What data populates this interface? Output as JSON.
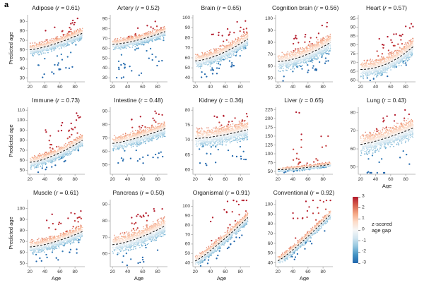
{
  "figure": {
    "label": "a"
  },
  "chart_data": {
    "type": "scatter",
    "xlabel": "Age",
    "ylabel": "Predicted age",
    "x_range": [
      17,
      93
    ],
    "x_ticks": [
      20,
      40,
      60,
      80
    ],
    "legend": {
      "label_line1": "z-scored",
      "label_line2": "age gap",
      "ticks": [
        "3",
        "2",
        "1",
        "0",
        "-1",
        "-2",
        "-3"
      ],
      "colors_top_to_bottom": [
        "#b2182b",
        "#d6604d",
        "#f4a582",
        "#fddbc7",
        "#f7f7f7",
        "#d1e5f0",
        "#92c5de",
        "#4393c3",
        "#2166ac"
      ]
    },
    "panels": [
      {
        "slug": "adipose",
        "title": "Adipose",
        "r": "0.61",
        "ylim": [
          26,
          97
        ],
        "yticks": [
          30,
          40,
          50,
          60,
          70,
          80,
          90
        ],
        "trend": [
          60,
          77.5
        ],
        "curve": 1.4,
        "sigma": 3.2,
        "n": 1500,
        "out_red": {
          "n": 16,
          "dy": [
            6,
            19
          ]
        },
        "out_blue": {
          "n": 22,
          "dy": [
            8,
            32
          ]
        },
        "show_ylabel": true,
        "show_xlabel": false
      },
      {
        "slug": "artery",
        "title": "Artery",
        "r": "0.52",
        "ylim": [
          26,
          94
        ],
        "yticks": [
          30,
          40,
          50,
          60,
          70,
          80,
          90
        ],
        "trend": [
          64,
          77
        ],
        "curve": 1.5,
        "sigma": 2.8,
        "n": 1500,
        "out_red": {
          "n": 10,
          "dy": [
            5,
            14
          ]
        },
        "out_blue": {
          "n": 30,
          "dy": [
            6,
            36
          ]
        },
        "show_ylabel": false,
        "show_xlabel": false
      },
      {
        "slug": "brain",
        "title": "Brain",
        "r": "0.65",
        "ylim": [
          36,
          103
        ],
        "yticks": [
          40,
          50,
          60,
          70,
          80,
          90,
          100
        ],
        "trend": [
          57,
          79
        ],
        "curve": 1.6,
        "sigma": 3.8,
        "n": 1500,
        "out_red": {
          "n": 20,
          "dy": [
            7,
            24
          ]
        },
        "out_blue": {
          "n": 25,
          "dy": [
            6,
            20
          ]
        },
        "show_ylabel": false,
        "show_xlabel": false
      },
      {
        "slug": "cognition-brain",
        "title": "Cognition brain",
        "r": "0.56",
        "ylim": [
          47,
          103
        ],
        "yticks": [
          50,
          60,
          70,
          80,
          90,
          100
        ],
        "trend": [
          64,
          80
        ],
        "curve": 1.7,
        "sigma": 3.8,
        "n": 1500,
        "out_red": {
          "n": 20,
          "dy": [
            6,
            20
          ]
        },
        "out_blue": {
          "n": 25,
          "dy": [
            5,
            18
          ]
        },
        "show_ylabel": false,
        "show_xlabel": false
      },
      {
        "slug": "heart",
        "title": "Heart",
        "r": "0.57",
        "ylim": [
          59,
          97
        ],
        "yticks": [
          60,
          65,
          70,
          75,
          80,
          85,
          90,
          95
        ],
        "trend": [
          66,
          79
        ],
        "curve": 2.0,
        "sigma": 2.6,
        "n": 1500,
        "out_red": {
          "n": 25,
          "dy": [
            6,
            16
          ]
        },
        "out_blue": {
          "n": 8,
          "dy": [
            4,
            8
          ]
        },
        "show_ylabel": false,
        "show_xlabel": false
      },
      {
        "slug": "immune",
        "title": "Immune",
        "r": "0.73",
        "ylim": [
          46,
          113
        ],
        "yticks": [
          50,
          60,
          70,
          80,
          90,
          100,
          110
        ],
        "trend": [
          58,
          80
        ],
        "curve": 1.5,
        "sigma": 3.2,
        "n": 1500,
        "out_red": {
          "n": 28,
          "dy": [
            7,
            31
          ]
        },
        "out_blue": {
          "n": 10,
          "dy": [
            5,
            12
          ]
        },
        "show_ylabel": true,
        "show_xlabel": false
      },
      {
        "slug": "intestine",
        "title": "Intestine",
        "r": "0.48",
        "ylim": [
          43,
          93
        ],
        "yticks": [
          50,
          60,
          70,
          80,
          90
        ],
        "trend": [
          66,
          77
        ],
        "curve": 1.3,
        "sigma": 2.8,
        "n": 1500,
        "out_red": {
          "n": 15,
          "dy": [
            5,
            16
          ]
        },
        "out_blue": {
          "n": 18,
          "dy": [
            6,
            21
          ]
        },
        "show_ylabel": false,
        "show_xlabel": false
      },
      {
        "slug": "kidney",
        "title": "Kidney",
        "r": "0.36",
        "ylim": [
          58.5,
          81
        ],
        "yticks": [
          60,
          65,
          70,
          75,
          80
        ],
        "trend": [
          70.5,
          73.5
        ],
        "curve": 1.5,
        "sigma": 1.6,
        "n": 1400,
        "out_red": {
          "n": 15,
          "dy": [
            3,
            7
          ]
        },
        "out_blue": {
          "n": 20,
          "dy": [
            2.5,
            10
          ]
        },
        "show_ylabel": false,
        "show_xlabel": false
      },
      {
        "slug": "liver",
        "title": "Liver",
        "r": "0.65",
        "ylim": [
          42,
          232
        ],
        "yticks": [
          50,
          75,
          100,
          125,
          150,
          175,
          200,
          225
        ],
        "trend": [
          55,
          70
        ],
        "curve": 1.5,
        "sigma": 3.5,
        "n": 1100,
        "out_red": {
          "n": 22,
          "dy": [
            12,
            170
          ],
          "skew": 2.4
        },
        "out_blue": {
          "n": 6,
          "dy": [
            5,
            10
          ]
        },
        "show_ylabel": false,
        "show_xlabel": false
      },
      {
        "slug": "lung",
        "title": "Lung",
        "r": "0.43",
        "ylim": [
          46,
          83
        ],
        "yticks": [
          50,
          60,
          70,
          80
        ],
        "trend": [
          62.5,
          71.5
        ],
        "curve": 1.3,
        "sigma": 2.9,
        "n": 1500,
        "out_red": {
          "n": 12,
          "dy": [
            5,
            12
          ]
        },
        "out_blue": {
          "n": 16,
          "dy": [
            6,
            22
          ]
        },
        "show_ylabel": false,
        "show_xlabel": true
      },
      {
        "slug": "muscle",
        "title": "Muscle",
        "r": "0.61",
        "ylim": [
          47,
          108
        ],
        "yticks": [
          50,
          60,
          70,
          80,
          90,
          100
        ],
        "trend": [
          65,
          79
        ],
        "curve": 1.5,
        "sigma": 3.2,
        "n": 1500,
        "out_red": {
          "n": 20,
          "dy": [
            6,
            27
          ]
        },
        "out_blue": {
          "n": 18,
          "dy": [
            6,
            18
          ]
        },
        "show_ylabel": true,
        "show_xlabel": true
      },
      {
        "slug": "pancreas",
        "title": "Pancreas",
        "r": "0.50",
        "ylim": [
          52,
          93
        ],
        "yticks": [
          60,
          70,
          80,
          90
        ],
        "trend": [
          65.5,
          77
        ],
        "curve": 1.5,
        "sigma": 2.9,
        "n": 1500,
        "out_red": {
          "n": 18,
          "dy": [
            6,
            15
          ]
        },
        "out_blue": {
          "n": 14,
          "dy": [
            5,
            16
          ]
        },
        "show_ylabel": false,
        "show_xlabel": true
      },
      {
        "slug": "organismal",
        "title": "Organismal",
        "r": "0.91",
        "ylim": [
          36,
          107
        ],
        "yticks": [
          40,
          50,
          60,
          70,
          80,
          90,
          100
        ],
        "trend": [
          42,
          88
        ],
        "curve": 1.15,
        "sigma": 3.0,
        "n": 1500,
        "out_red": {
          "n": 20,
          "dy": [
            6,
            38
          ]
        },
        "out_blue": {
          "n": 15,
          "dy": [
            5,
            14
          ]
        },
        "show_ylabel": false,
        "show_xlabel": true
      },
      {
        "slug": "conventional",
        "title": "Conventional",
        "r": "0.92",
        "ylim": [
          36,
          105
        ],
        "yticks": [
          40,
          50,
          60,
          70,
          80,
          90,
          100
        ],
        "trend": [
          42,
          90
        ],
        "curve": 1.15,
        "sigma": 2.4,
        "n": 1500,
        "out_red": {
          "n": 20,
          "dy": [
            6,
            45
          ]
        },
        "out_blue": {
          "n": 12,
          "dy": [
            4,
            12
          ]
        },
        "show_ylabel": false,
        "show_xlabel": true
      }
    ]
  }
}
